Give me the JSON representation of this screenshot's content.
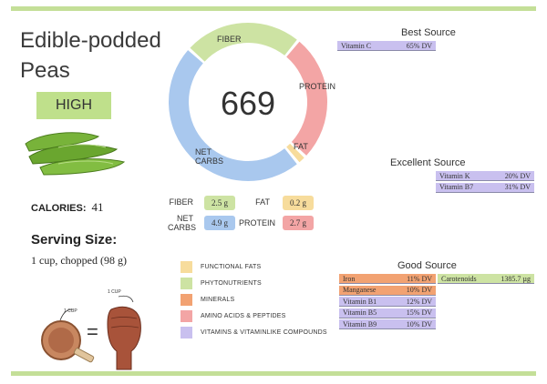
{
  "title": "Edible-podded Peas",
  "level_badge": "HIGH",
  "calories": {
    "label": "CALORIES:",
    "value": "41"
  },
  "serving": {
    "label": "Serving Size:",
    "value": "1 cup, chopped (98 g)"
  },
  "donut": {
    "center_value": "669",
    "segments": [
      {
        "label": "FIBER",
        "value": 2.5,
        "color": "#cde3a3"
      },
      {
        "label": "PROTEIN",
        "value": 2.7,
        "color": "#f3a5a5"
      },
      {
        "label": "FAT",
        "value": 0.2,
        "color": "#f7dc9c"
      },
      {
        "label": "NET\nCARBS",
        "value": 4.9,
        "color": "#a9c8ee"
      }
    ]
  },
  "macros": {
    "fiber": {
      "label": "FIBER",
      "value": "2.5 g",
      "color": "#cde3a3"
    },
    "fat": {
      "label": "FAT",
      "value": "0.2 g",
      "color": "#f7dc9c"
    },
    "net_carbs": {
      "label1": "NET",
      "label2": "CARBS",
      "value": "4.9 g",
      "color": "#a9c8ee"
    },
    "protein": {
      "label": "PROTEIN",
      "value": "2.7 g",
      "color": "#f3a5a5"
    }
  },
  "legend": [
    {
      "label": "FUNCTIONAL FATS",
      "color": "#f7dc9c"
    },
    {
      "label": "PHYTONUTRIENTS",
      "color": "#cde3a3"
    },
    {
      "label": "MINERALS",
      "color": "#f2a272"
    },
    {
      "label": "AMINO ACIDS & PEPTIDES",
      "color": "#f3a5a5"
    },
    {
      "label": "VITAMINS & VITAMINLIKE COMPOUNDS",
      "color": "#c9c0ef"
    }
  ],
  "best_source": {
    "title": "Best Source",
    "items": [
      {
        "name": "Vitamin C",
        "value": "65% DV",
        "color": "#c9c0ef"
      }
    ]
  },
  "excellent_source": {
    "title": "Excellent Source",
    "items": [
      {
        "name": "Vitamin K",
        "value": "20% DV",
        "color": "#c9c0ef"
      },
      {
        "name": "Vitamin B7",
        "value": "31% DV",
        "color": "#c9c0ef"
      }
    ]
  },
  "good_source": {
    "title": "Good Source",
    "items": [
      {
        "name": "Iron",
        "value": "11% DV",
        "color": "#f2a272"
      },
      {
        "name": "Manganese",
        "value": "10% DV",
        "color": "#f2a272"
      },
      {
        "name": "Vitamin B1",
        "value": "12% DV",
        "color": "#c9c0ef"
      },
      {
        "name": "Vitamin B5",
        "value": "15% DV",
        "color": "#c9c0ef"
      },
      {
        "name": "Vitamin B9",
        "value": "10% DV",
        "color": "#c9c0ef"
      }
    ],
    "extra": {
      "name": "Carotenoids",
      "value": "1385.7 µg",
      "color": "#cde3a3"
    }
  },
  "serving_visual": {
    "cup_label": "1 CUP",
    "fist_label": "1 CUP",
    "equals": "="
  }
}
